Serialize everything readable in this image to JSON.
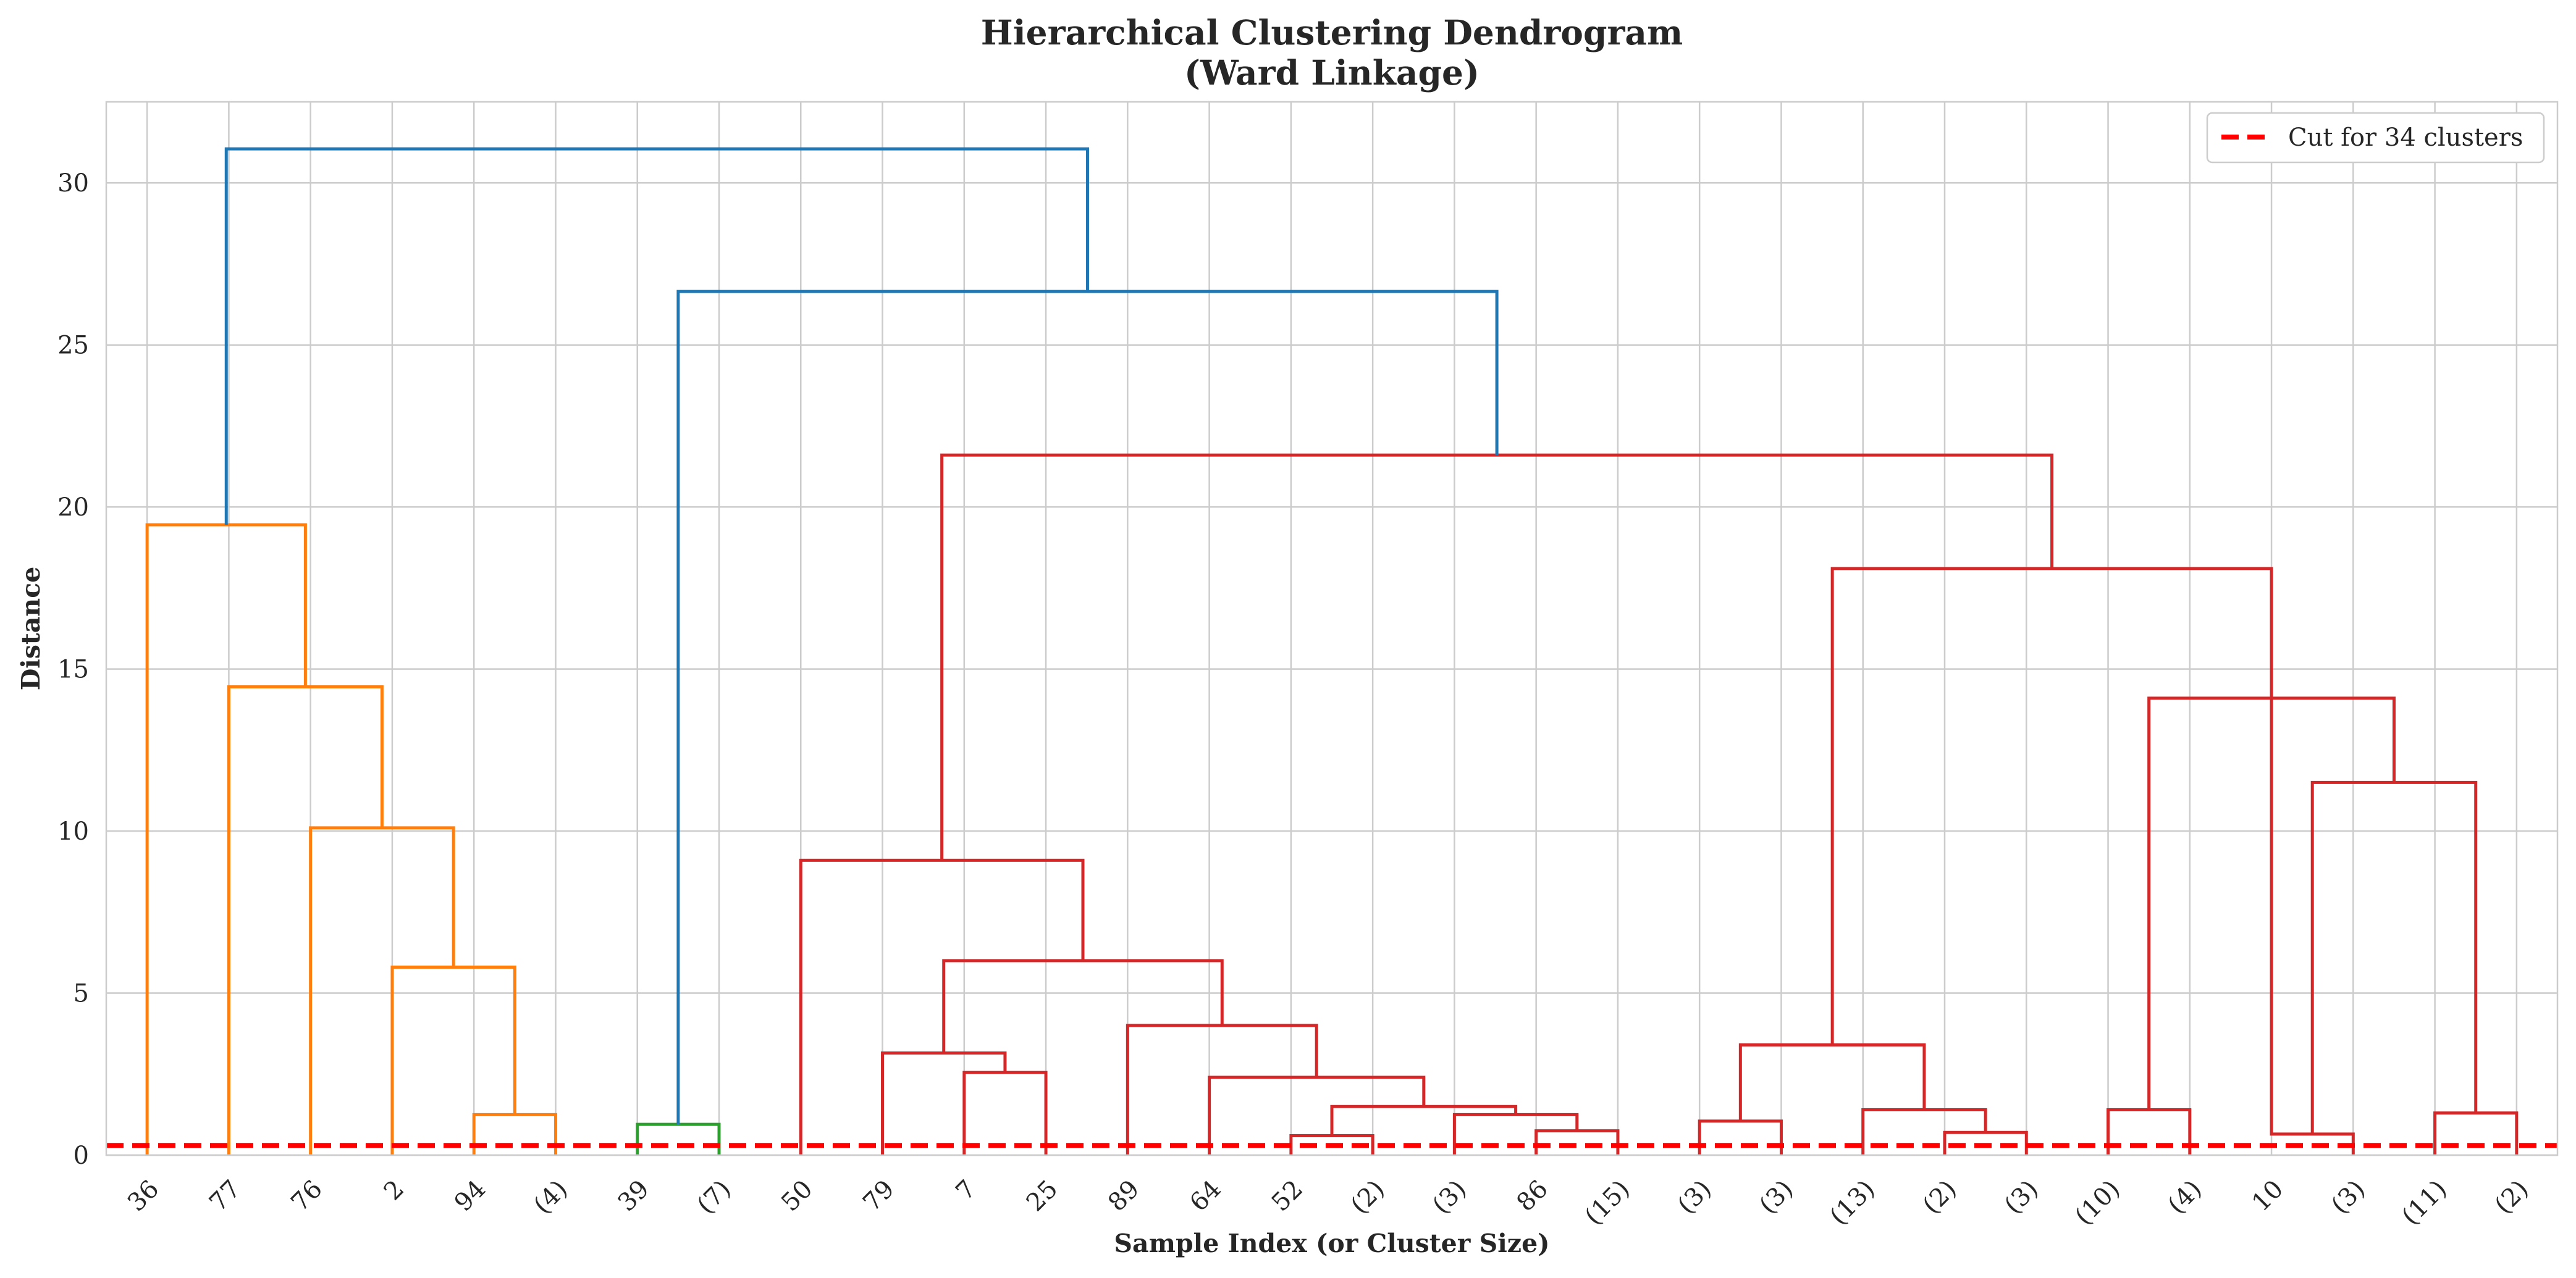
{
  "chart_data": {
    "type": "dendrogram",
    "title": "Hierarchical Clustering Dendrogram",
    "subtitle": "(Ward Linkage)",
    "xlabel": "Sample Index (or Cluster Size)",
    "ylabel": "Distance",
    "ylim": [
      0,
      32.5
    ],
    "yticks": [
      0,
      5,
      10,
      15,
      20,
      25,
      30
    ],
    "grid": true,
    "legend": {
      "position": "top-right",
      "entries": [
        "Cut for 34 clusters"
      ]
    },
    "leaves": [
      "36",
      "77",
      "76",
      "2",
      "94",
      "(4)",
      "39",
      "(7)",
      "50",
      "79",
      "7",
      "25",
      "89",
      "64",
      "52",
      "(2)",
      "(3)",
      "86",
      "(15)",
      "(3)",
      "(3)",
      "(13)",
      "(2)",
      "(3)",
      "(10)",
      "(4)",
      "10",
      "(3)",
      "(11)",
      "(2)"
    ],
    "cut_line": {
      "y": 0.3,
      "color": "#ff0000",
      "label": "Cut for 34 clusters"
    },
    "colors": {
      "orange": "#ff7f0e",
      "green": "#2ca02c",
      "red": "#d62728",
      "blue": "#1f77b4"
    },
    "links": [
      {
        "left": 4,
        "right": 5,
        "height": 1.25,
        "color": "orange"
      },
      {
        "left": 3,
        "right": 4.5,
        "height": 5.8,
        "color": "orange"
      },
      {
        "left": 2,
        "right": 3.75,
        "height": 10.1,
        "color": "orange"
      },
      {
        "left": 1,
        "right": 2.875,
        "height": 14.45,
        "color": "orange"
      },
      {
        "left": 0,
        "right": 1.9375,
        "height": 19.45,
        "color": "orange"
      },
      {
        "left": 6,
        "right": 7,
        "height": 0.95,
        "color": "green"
      },
      {
        "left": 10,
        "right": 11,
        "height": 2.55,
        "color": "red"
      },
      {
        "left": 9,
        "right": 10.5,
        "height": 3.15,
        "color": "red"
      },
      {
        "left": 14,
        "right": 15,
        "height": 0.6,
        "color": "red"
      },
      {
        "left": 17,
        "right": 18,
        "height": 0.75,
        "color": "red"
      },
      {
        "left": 16,
        "right": 17.5,
        "height": 1.25,
        "color": "red"
      },
      {
        "left": 14.5,
        "right": 16.75,
        "height": 1.5,
        "color": "red"
      },
      {
        "left": 13,
        "right": 15.625,
        "height": 2.4,
        "color": "red"
      },
      {
        "left": 12,
        "right": 14.3125,
        "height": 4.0,
        "color": "red"
      },
      {
        "left": 9.75,
        "right": 13.15625,
        "height": 6.0,
        "color": "red"
      },
      {
        "left": 8,
        "right": 11.453125,
        "height": 9.1,
        "color": "red"
      },
      {
        "left": 19,
        "right": 20,
        "height": 1.05,
        "color": "red"
      },
      {
        "left": 22,
        "right": 23,
        "height": 0.7,
        "color": "red"
      },
      {
        "left": 21,
        "right": 22.5,
        "height": 1.4,
        "color": "red"
      },
      {
        "left": 19.5,
        "right": 21.75,
        "height": 3.4,
        "color": "red"
      },
      {
        "left": 24,
        "right": 25,
        "height": 1.4,
        "color": "red"
      },
      {
        "left": 26,
        "right": 27,
        "height": 0.65,
        "color": "red"
      },
      {
        "left": 28,
        "right": 29,
        "height": 1.3,
        "color": "red"
      },
      {
        "left": 26.5,
        "right": 28.5,
        "height": 11.5,
        "color": "red"
      },
      {
        "left": 24.5,
        "right": 27.5,
        "height": 14.1,
        "color": "red"
      },
      {
        "left": 20.625,
        "right": 26,
        "height": 18.1,
        "color": "red"
      },
      {
        "left": 9.7265625,
        "right": 23.3125,
        "height": 21.6,
        "color": "red"
      },
      {
        "left": 6.5,
        "right": 16.51953125,
        "height": 26.65,
        "color": "blue"
      },
      {
        "left": 0.96875,
        "right": 11.509765625,
        "height": 31.05,
        "color": "blue"
      }
    ]
  }
}
